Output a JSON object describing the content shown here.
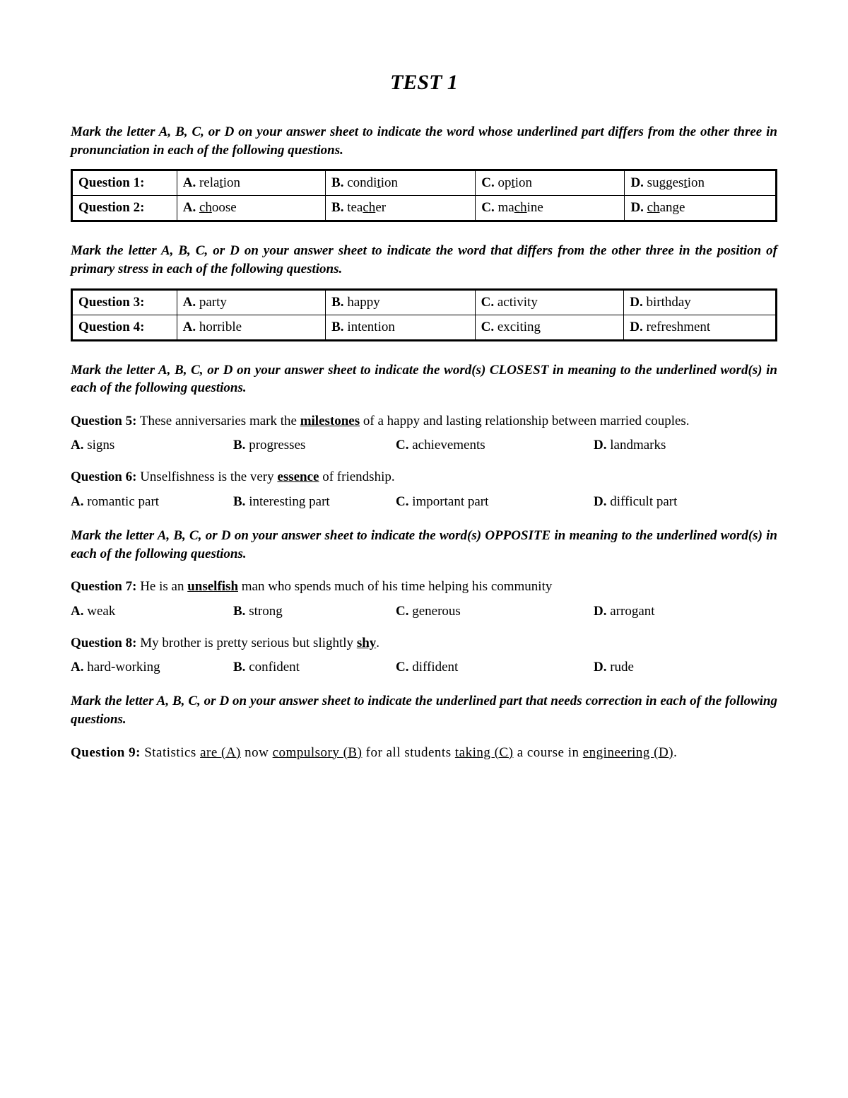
{
  "title": "TEST 1",
  "font": {
    "family": "Times New Roman",
    "body_size_pt": 14,
    "title_size_pt": 22
  },
  "colors": {
    "text": "#000000",
    "background": "#ffffff",
    "table_border": "#000000"
  },
  "instructions": {
    "pronunciation": "Mark the letter A, B, C, or D on your answer sheet to indicate the word whose underlined part differs from the other three in pronunciation in each of the following questions.",
    "stress": "Mark the letter A, B, C, or D on your answer sheet to indicate the word that differs from the other three in the position of primary stress in each of the following questions.",
    "closest": "Mark the letter A, B, C, or D on your answer sheet to indicate the word(s) CLOSEST in meaning to the underlined word(s) in each of the following questions.",
    "opposite": "Mark the letter A, B, C, or D on your answer sheet to indicate the word(s) OPPOSITE in meaning to the underlined word(s) in each of the following questions.",
    "correction": "Mark the letter A, B, C, or D on your answer sheet to indicate the underlined part that needs correction in each of the following questions."
  },
  "table1": {
    "rows": [
      {
        "q": "Question 1:",
        "A": {
          "pre": "rela",
          "u": "t",
          "post": "ion"
        },
        "B": {
          "pre": "condi",
          "u": "t",
          "post": "ion"
        },
        "C": {
          "pre": "op",
          "u": "t",
          "post": "ion"
        },
        "D": {
          "pre": "sugges",
          "u": "t",
          "post": "ion"
        }
      },
      {
        "q": "Question 2:",
        "A": {
          "pre": "",
          "u": "ch",
          "post": "oose"
        },
        "B": {
          "pre": "tea",
          "u": "ch",
          "post": "er"
        },
        "C": {
          "pre": "ma",
          "u": "ch",
          "post": "ine"
        },
        "D": {
          "pre": "",
          "u": "ch",
          "post": "ange"
        }
      }
    ]
  },
  "table2": {
    "rows": [
      {
        "q": "Question 3:",
        "A": "party",
        "B": "happy",
        "C": "activity",
        "D": "birthday"
      },
      {
        "q": "Question 4:",
        "A": "horrible",
        "B": "intention",
        "C": "exciting",
        "D": "refreshment"
      }
    ]
  },
  "q5": {
    "num": "Question 5:",
    "pre": " These anniversaries mark the ",
    "u": "milestones",
    "post": " of a happy and lasting relationship between married couples.",
    "opts": {
      "A": "signs",
      "B": "progresses",
      "C": "achievements",
      "D": "landmarks"
    }
  },
  "q6": {
    "num": "Question 6:",
    "pre": " Unselfishness is the very ",
    "u": "essence",
    "post": " of friendship.",
    "opts": {
      "A": "romantic part",
      "B": "interesting part",
      "C": "important part",
      "D": "difficult part"
    }
  },
  "q7": {
    "num": "Question 7:",
    "pre": " He is an ",
    "u": "unselfish",
    "post": " man who spends much of his time helping his community",
    "opts": {
      "A": "weak",
      "B": "strong",
      "C": "generous",
      "D": "arrogant"
    }
  },
  "q8": {
    "num": "Question 8:",
    "pre": " My brother is pretty serious but slightly ",
    "u": "shy",
    "post": ".",
    "opts": {
      "A": "hard-working",
      "B": "confident",
      "C": "diffident",
      "D": "rude"
    }
  },
  "q9": {
    "num": "Question 9:",
    "t1": " Statistics ",
    "u1": "are   (A)",
    "t2": " now ",
    "u2": "compulsory   (B)",
    "t3": " for  all  students ",
    "u3": "taking   (C)",
    "t4": " a  course in ",
    "u4": "engineering (D)",
    "t5": "."
  },
  "labels": {
    "A": "A.",
    "B": "B.",
    "C": "C.",
    "D": "D."
  }
}
